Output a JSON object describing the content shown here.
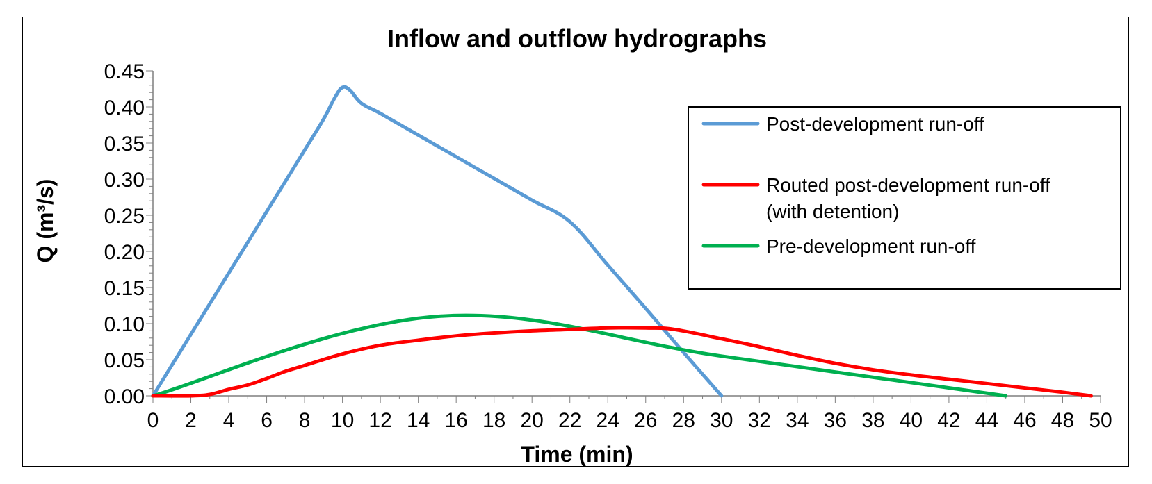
{
  "chart_data": {
    "type": "line",
    "title": "Inflow and outflow hydrographs",
    "xlabel": "Time (min)",
    "ylabel": "Q (m³/s)",
    "xlim": [
      0,
      50
    ],
    "ylim": [
      0,
      0.45
    ],
    "x_ticks": [
      "0",
      "2",
      "4",
      "6",
      "8",
      "10",
      "12",
      "14",
      "16",
      "18",
      "20",
      "22",
      "24",
      "26",
      "28",
      "30",
      "32",
      "34",
      "36",
      "38",
      "40",
      "42",
      "44",
      "46",
      "48",
      "50"
    ],
    "y_ticks": [
      "0.00",
      "0.05",
      "0.10",
      "0.15",
      "0.20",
      "0.25",
      "0.30",
      "0.35",
      "0.40",
      "0.45"
    ],
    "grid": false,
    "legend_position": "top-right",
    "series": [
      {
        "name": "Post-development run-off",
        "color": "#5b9bd5",
        "x": [
          0,
          2,
          4,
          6,
          8,
          9,
          9.6,
          10,
          10.4,
          11,
          12,
          14,
          16,
          18,
          20,
          22,
          24,
          26,
          28,
          30
        ],
        "y": [
          0,
          0.085,
          0.17,
          0.255,
          0.34,
          0.383,
          0.413,
          0.427,
          0.423,
          0.405,
          0.391,
          0.361,
          0.331,
          0.301,
          0.271,
          0.241,
          0.181,
          0.121,
          0.06,
          0
        ]
      },
      {
        "name": "Routed post-development run-off\n(with detention)",
        "color": "#ff0000",
        "x": [
          0,
          2,
          3,
          4,
          5,
          6,
          7,
          8,
          10,
          12,
          14,
          16,
          18,
          20,
          22,
          24,
          26,
          27.5,
          30,
          32,
          34,
          36,
          38,
          40,
          42,
          44,
          46,
          48,
          49.5
        ],
        "y": [
          0,
          0,
          0.002,
          0.009,
          0.015,
          0.024,
          0.034,
          0.042,
          0.058,
          0.07,
          0.077,
          0.083,
          0.087,
          0.09,
          0.092,
          0.094,
          0.094,
          0.092,
          0.079,
          0.068,
          0.056,
          0.045,
          0.036,
          0.029,
          0.023,
          0.017,
          0.011,
          0.005,
          0
        ]
      },
      {
        "name": "Pre-development run-off",
        "color": "#00b050",
        "x": [
          0,
          15,
          30,
          45
        ],
        "y": [
          0,
          0.11,
          0.055,
          0
        ]
      }
    ]
  }
}
